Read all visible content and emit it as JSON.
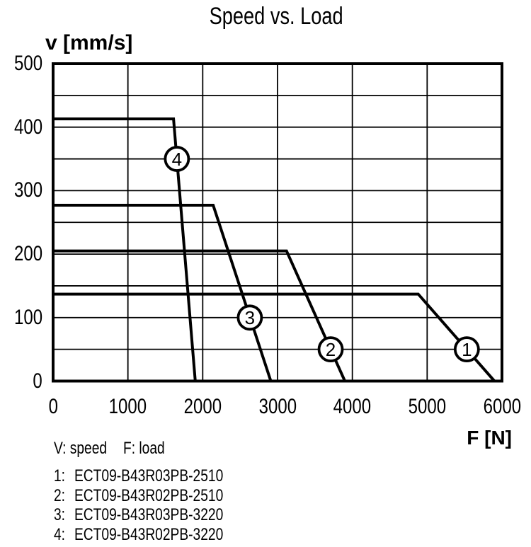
{
  "chart_data": {
    "type": "line",
    "title": "Speed vs. Load",
    "xlabel": "F [N]",
    "ylabel": "v [mm/s]",
    "xlim": [
      0,
      6000
    ],
    "ylim": [
      0,
      500
    ],
    "x_ticks": [
      0,
      1000,
      2000,
      3000,
      4000,
      5000,
      6000
    ],
    "y_ticks": [
      0,
      100,
      200,
      300,
      400,
      500
    ],
    "y_minor_step": 50,
    "grid": true,
    "legend_position": "below-left",
    "series": [
      {
        "label": "1",
        "model": "ECT09-B43R03PB-2510",
        "points": [
          [
            0,
            137
          ],
          [
            4880,
            137
          ],
          [
            5900,
            0
          ]
        ],
        "marker_at": [
          5530,
          50
        ]
      },
      {
        "label": "2",
        "model": "ECT09-B43R02PB-2510",
        "points": [
          [
            0,
            205
          ],
          [
            3120,
            205
          ],
          [
            3900,
            0
          ]
        ],
        "marker_at": [
          3710,
          50
        ]
      },
      {
        "label": "3",
        "model": "ECT09-B43R03PB-3220",
        "points": [
          [
            0,
            277
          ],
          [
            2140,
            277
          ],
          [
            2910,
            0
          ]
        ],
        "marker_at": [
          2630,
          100
        ]
      },
      {
        "label": "4",
        "model": "ECT09-B43R02PB-3220",
        "points": [
          [
            0,
            413
          ],
          [
            1610,
            413
          ],
          [
            1900,
            0
          ]
        ],
        "marker_at": [
          1655,
          350
        ]
      }
    ],
    "colors": {
      "line": "#000000",
      "background": "#ffffff",
      "text": "#000000"
    }
  },
  "legend_note": {
    "v": "V: speed",
    "f": "F: load"
  }
}
